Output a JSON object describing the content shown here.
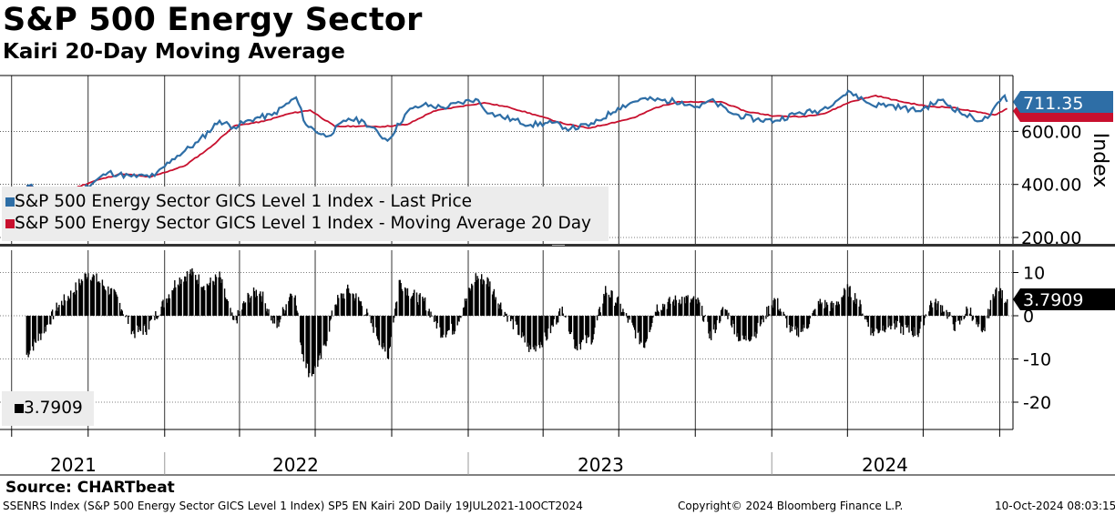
{
  "title": "S&P 500 Energy Sector",
  "subtitle": "Kairi 20-Day Moving Average",
  "source": "Source: CHARTbeat",
  "footer": {
    "left": "SSENRS Index (S&P 500 Energy Sector GICS Level 1 Index) SP5 EN Kairi 20D  Daily 19JUL2021-10OCT2024",
    "center": "Copyright© 2024 Bloomberg Finance L.P.",
    "right": "10-Oct-2024 08:03:15"
  },
  "chart_data": [
    {
      "type": "line",
      "ylabel": "Index",
      "y_ticks": [
        "200.00",
        "400.00",
        "600.00"
      ],
      "last_value_label": "711.35",
      "ylim": [
        140,
        810
      ],
      "legend": [
        {
          "label": "S&P 500 Energy Sector GICS Level 1 Index - Last Price",
          "color": "#2e6ea6"
        },
        {
          "label": "S&P 500 Energy Sector GICS Level 1 Index - Moving Average 20 Day",
          "color": "#c8102e"
        }
      ],
      "series": [
        {
          "name": "S&P 500 Energy Sector GICS Level 1 Index - Last Price",
          "color": "#2e6ea6",
          "x": [
            "2021-07-19",
            "2021-08-20",
            "2021-09-20",
            "2021-10-25",
            "2021-11-22",
            "2021-12-20",
            "2022-01-10",
            "2022-02-10",
            "2022-03-08",
            "2022-03-25",
            "2022-04-20",
            "2022-05-10",
            "2022-06-08",
            "2022-06-20",
            "2022-07-14",
            "2022-08-10",
            "2022-08-29",
            "2022-09-26",
            "2022-10-20",
            "2022-11-08",
            "2022-12-02",
            "2023-01-10",
            "2023-01-27",
            "2023-03-17",
            "2023-04-12",
            "2023-05-04",
            "2023-06-01",
            "2023-06-30",
            "2023-07-27",
            "2023-09-15",
            "2023-10-06",
            "2023-10-19",
            "2023-11-16",
            "2023-12-13",
            "2024-01-05",
            "2024-01-31",
            "2024-02-28",
            "2024-03-27",
            "2024-04-05",
            "2024-04-30",
            "2024-05-20",
            "2024-06-25",
            "2024-07-22",
            "2024-08-20",
            "2024-09-10",
            "2024-09-20",
            "2024-10-07",
            "2024-10-10"
          ],
          "y": [
            395,
            367,
            372,
            445,
            430,
            432,
            495,
            560,
            640,
            616,
            650,
            661,
            728,
            625,
            580,
            648,
            636,
            565,
            675,
            700,
            690,
            722,
            668,
            625,
            632,
            610,
            628,
            688,
            722,
            712,
            690,
            718,
            665,
            645,
            640,
            668,
            678,
            735,
            748,
            700,
            700,
            677,
            718,
            662,
            640,
            662,
            735,
            711.35
          ]
        },
        {
          "name": "S&P 500 Energy Sector GICS Level 1 Index - Moving Average 20 Day",
          "color": "#c8102e",
          "x": [
            "2021-07-19",
            "2021-09-01",
            "2021-10-10",
            "2021-11-10",
            "2021-12-15",
            "2022-01-25",
            "2022-02-25",
            "2022-03-25",
            "2022-04-30",
            "2022-06-01",
            "2022-06-25",
            "2022-07-25",
            "2022-08-25",
            "2022-09-20",
            "2022-10-20",
            "2022-11-20",
            "2022-12-20",
            "2023-01-20",
            "2023-02-20",
            "2023-03-25",
            "2023-04-25",
            "2023-05-25",
            "2023-06-20",
            "2023-07-20",
            "2023-08-15",
            "2023-09-10",
            "2023-10-05",
            "2023-11-01",
            "2023-12-01",
            "2024-01-05",
            "2024-02-05",
            "2024-03-05",
            "2024-04-05",
            "2024-05-05",
            "2024-06-05",
            "2024-07-05",
            "2024-08-05",
            "2024-09-05",
            "2024-09-25",
            "2024-10-10"
          ],
          "y": [
            395,
            370,
            415,
            440,
            428,
            470,
            540,
            620,
            638,
            668,
            680,
            618,
            620,
            618,
            626,
            676,
            693,
            708,
            690,
            660,
            630,
            612,
            630,
            652,
            690,
            712,
            710,
            712,
            675,
            658,
            655,
            668,
            712,
            735,
            712,
            695,
            690,
            672,
            662,
            686
          ]
        }
      ]
    },
    {
      "type": "bar",
      "y_ticks": [
        "10",
        "0",
        "-10",
        "-20"
      ],
      "last_value_label": "3.7909",
      "legend": [
        {
          "label": "3.7909",
          "color": "#000000"
        }
      ],
      "ylim": [
        -26,
        14
      ],
      "x_labels": [
        "2021",
        "2022",
        "2023",
        "2024"
      ],
      "series": [
        {
          "name": "SP5 EN Kairi 20D",
          "color": "#000000",
          "x": [
            "2021-07-19",
            "2021-08-10",
            "2021-08-25",
            "2021-09-10",
            "2021-10-01",
            "2021-10-20",
            "2021-11-05",
            "2021-11-25",
            "2021-12-10",
            "2021-12-28",
            "2022-01-15",
            "2022-02-01",
            "2022-02-20",
            "2022-03-08",
            "2022-03-25",
            "2022-04-10",
            "2022-04-25",
            "2022-05-15",
            "2022-06-05",
            "2022-06-15",
            "2022-06-25",
            "2022-07-10",
            "2022-07-25",
            "2022-08-10",
            "2022-08-25",
            "2022-09-15",
            "2022-09-26",
            "2022-10-10",
            "2022-10-25",
            "2022-11-10",
            "2022-11-30",
            "2022-12-15",
            "2023-01-10",
            "2023-01-25",
            "2023-02-10",
            "2023-02-28",
            "2023-03-17",
            "2023-04-05",
            "2023-04-25",
            "2023-05-10",
            "2023-05-31",
            "2023-06-15",
            "2023-06-30",
            "2023-07-15",
            "2023-07-31",
            "2023-08-15",
            "2023-08-31",
            "2023-09-15",
            "2023-10-05",
            "2023-10-20",
            "2023-11-05",
            "2023-11-25",
            "2023-12-12",
            "2024-01-05",
            "2024-01-25",
            "2024-02-10",
            "2024-02-28",
            "2024-03-15",
            "2024-04-01",
            "2024-04-12",
            "2024-05-01",
            "2024-05-20",
            "2024-06-05",
            "2024-06-25",
            "2024-07-10",
            "2024-07-25",
            "2024-08-10",
            "2024-08-25",
            "2024-09-10",
            "2024-09-25",
            "2024-10-10"
          ],
          "y": [
            -9,
            -3,
            2,
            5,
            10,
            7,
            4,
            -4,
            -3,
            2,
            8,
            10,
            7,
            9,
            -2,
            4,
            6,
            -3,
            7,
            -8,
            -14,
            -9,
            3,
            6,
            3,
            -5,
            -10,
            8,
            5,
            3,
            -4,
            -3,
            9,
            8,
            2,
            -3,
            -8,
            -5,
            2,
            -7,
            -5,
            6,
            3,
            -2,
            -7,
            2,
            3,
            4,
            3,
            -5,
            2,
            -6,
            -4,
            4,
            -4,
            -3,
            3,
            2,
            6,
            4,
            -4,
            -2,
            -3,
            -4,
            3,
            2,
            -3,
            2,
            -5,
            6,
            3.79
          ]
        }
      ]
    }
  ]
}
